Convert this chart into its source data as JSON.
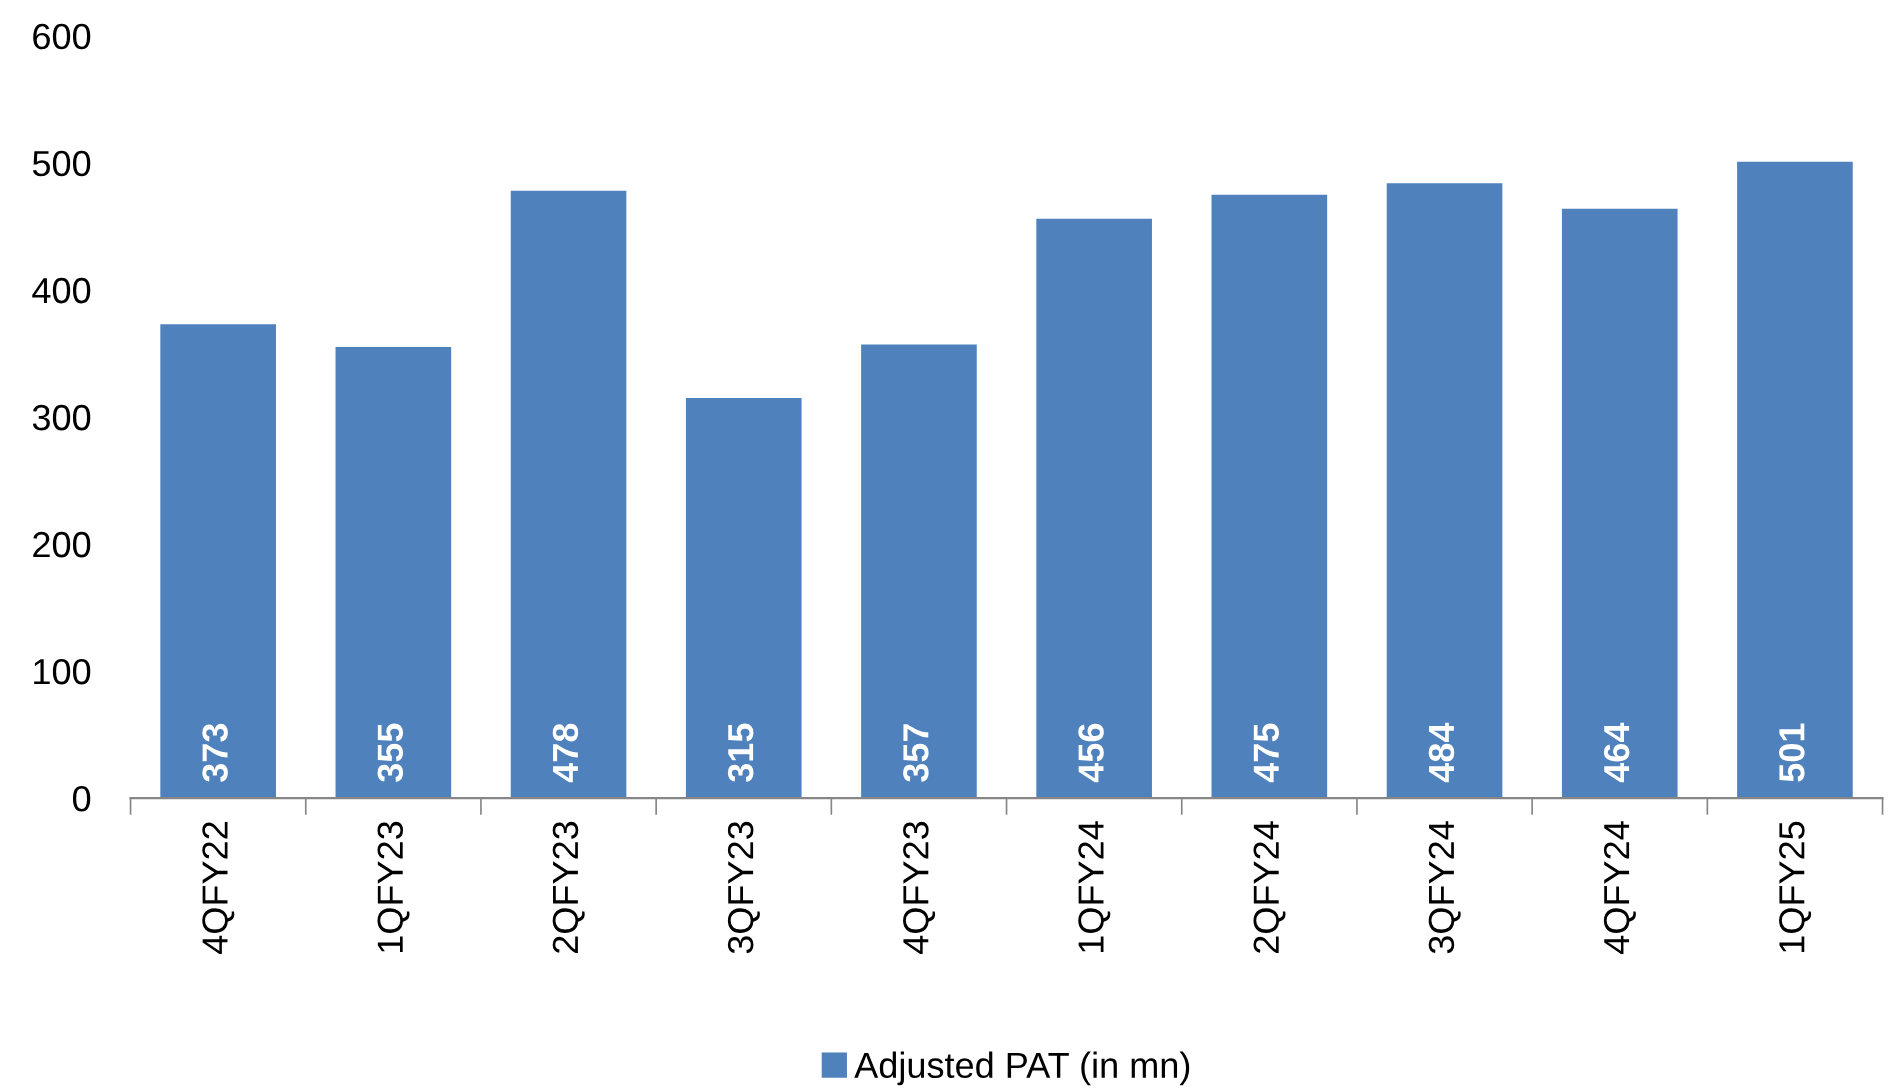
{
  "chart_data": {
    "type": "bar",
    "categories": [
      "4QFY22",
      "1QFY23",
      "2QFY23",
      "3QFY23",
      "4QFY23",
      "1QFY24",
      "2QFY24",
      "3QFY24",
      "4QFY24",
      "1QFY25"
    ],
    "series": [
      {
        "name": "Adjusted PAT (in mn)",
        "color": "#4f81bd",
        "values": [
          373,
          355,
          478,
          315,
          357,
          456,
          475,
          484,
          464,
          501
        ]
      }
    ],
    "ylim": [
      0,
      600
    ],
    "yticks": [
      0,
      100,
      200,
      300,
      400,
      500,
      600
    ],
    "grid": false,
    "legend": "bottom",
    "data_labels": true
  }
}
